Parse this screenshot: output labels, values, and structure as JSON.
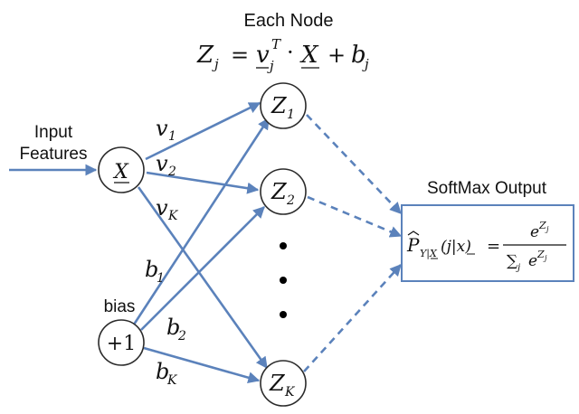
{
  "title": "Each Node",
  "node_equation": {
    "lhs": "Z",
    "lhs_sub": "j",
    "eq": "=",
    "v": "v",
    "v_sub": "j",
    "v_sup": "T",
    "dot": "·",
    "x": "X",
    "plus": "+",
    "b": "b",
    "b_sub": "j"
  },
  "input_label_line1": "Input",
  "input_label_line2": "Features",
  "bias_label": "bias",
  "input_node": {
    "label": "X"
  },
  "bias_node": {
    "label": "+1"
  },
  "hidden_nodes": [
    {
      "base": "Z",
      "sub": "1"
    },
    {
      "base": "Z",
      "sub": "2"
    },
    {
      "base": "Z",
      "sub": "K"
    }
  ],
  "weight_labels": [
    {
      "base": "v",
      "sub": "1"
    },
    {
      "base": "v",
      "sub": "2"
    },
    {
      "base": "v",
      "sub": "K"
    }
  ],
  "bias_labels": [
    {
      "base": "b",
      "sub": "1"
    },
    {
      "base": "b",
      "sub": "2"
    },
    {
      "base": "b",
      "sub": "K"
    }
  ],
  "softmax_title": "SoftMax Output",
  "softmax_formula": {
    "p": "P",
    "p_sub": "Y|X",
    "args": "(j|x)",
    "eq": "=",
    "num_base": "e",
    "num_sup": "Z",
    "num_sup_sub": "j",
    "den_sum": "∑",
    "den_sum_sub": "j",
    "den_base": "e",
    "den_sup": "Z",
    "den_sup_sub": "j"
  },
  "colors": {
    "arrow": "#5b82bb",
    "node_stroke": "#2b2b2b"
  }
}
